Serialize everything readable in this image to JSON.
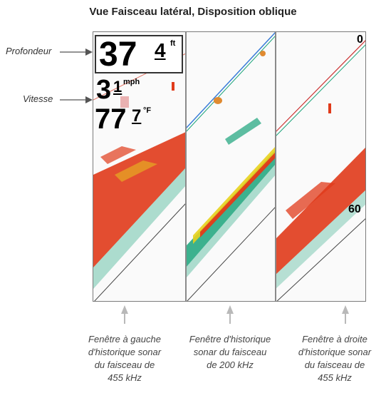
{
  "title": "Vue Faisceau latéral, Disposition oblique",
  "callouts": {
    "depth_label": "Profondeur",
    "speed_label": "Vitesse"
  },
  "readouts": {
    "depth": {
      "main": "37",
      "tenths": "4",
      "unit": "ft"
    },
    "speed": {
      "main": "3",
      "tenths": "1",
      "unit": "mph"
    },
    "temp": {
      "main": "77",
      "tenths": "7",
      "unit": "°F"
    }
  },
  "scale": {
    "top": "0",
    "bottom": "60"
  },
  "captions": {
    "left": [
      "Fenêtre à gauche",
      "d'historique sonar",
      "du faisceau de",
      "455 kHz"
    ],
    "center": [
      "Fenêtre d'historique",
      "sonar du faisceau",
      "de 200 kHz"
    ],
    "right": [
      "Fenêtre à droite",
      "d'historique sonar",
      "du faisceau de",
      "455 kHz"
    ]
  },
  "colors": {
    "sonar_red": "#e03a1a",
    "sonar_green": "#1aa37a",
    "sonar_yellow": "#e8d21c",
    "background": "#fafafa"
  }
}
